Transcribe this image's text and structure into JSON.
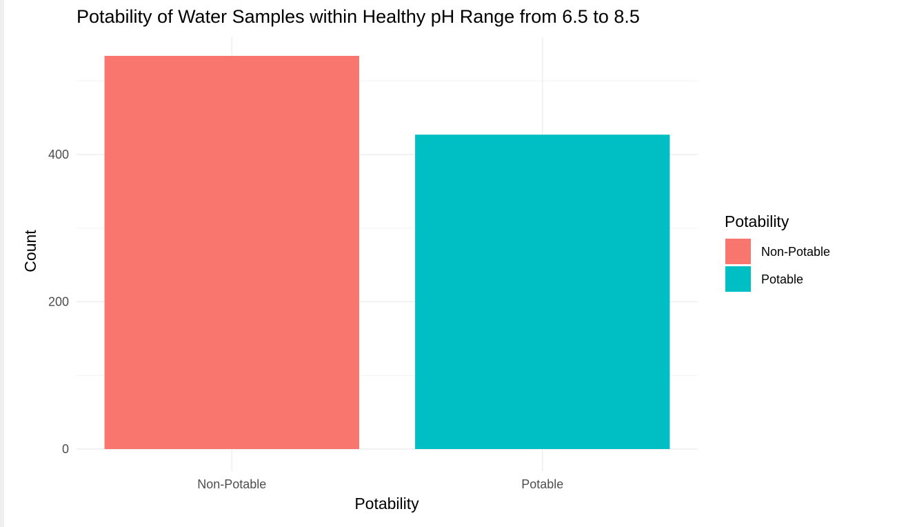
{
  "chart_data": {
    "type": "bar",
    "title": "Potability of Water Samples within Healthy pH Range from 6.5 to 8.5",
    "xlabel": "Potability",
    "ylabel": "Count",
    "categories": [
      "Non-Potable",
      "Potable"
    ],
    "values": [
      534,
      427
    ],
    "ylim": [
      0,
      534
    ],
    "yticks": [
      0,
      200,
      400
    ],
    "grid": true,
    "colors": [
      "#F8766D",
      "#00BFC4"
    ],
    "legend": {
      "title": "Potability",
      "position": "right",
      "entries": [
        {
          "label": "Non-Potable",
          "color": "#F8766D"
        },
        {
          "label": "Potable",
          "color": "#00BFC4"
        }
      ]
    }
  }
}
